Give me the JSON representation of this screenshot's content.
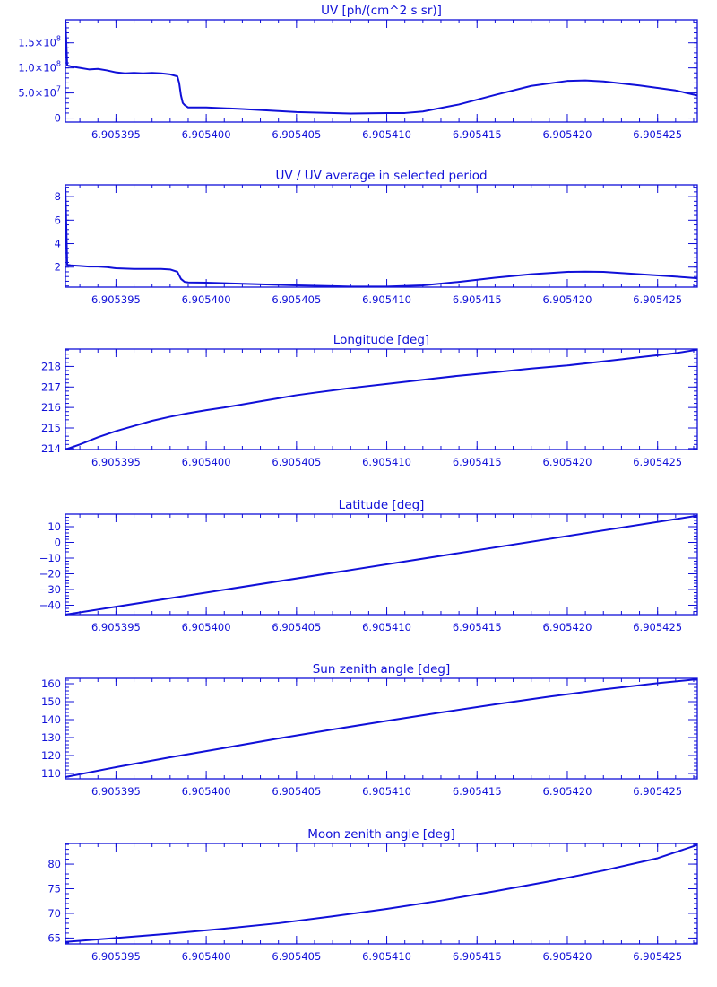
{
  "chart_data": [
    {
      "type": "line",
      "title": "UV [ph/(cm^2 s sr)]",
      "xlim": [
        6.9053922,
        6.9054272
      ],
      "ylim": [
        -8000000,
        196000000
      ],
      "xticks": [
        6.905395,
        6.9054,
        6.905405,
        6.90541,
        6.905415,
        6.90542,
        6.905425
      ],
      "xtick_labels": [
        "6.905395",
        "6.905400",
        "6.905405",
        "6.905410",
        "6.905415",
        "6.905420",
        "6.905425"
      ],
      "yticks": [
        0,
        50000000,
        100000000,
        150000000
      ],
      "ytick_labels": [
        {
          "base": "0",
          "exp": ""
        },
        {
          "base": "5.0×10",
          "exp": "7"
        },
        {
          "base": "1.0×10",
          "exp": "8"
        },
        {
          "base": "1.5×10",
          "exp": "8"
        }
      ],
      "series": [
        {
          "x": [
            6.9053922,
            6.9053923,
            6.9053925,
            6.905393,
            6.9053935,
            6.905394,
            6.9053945,
            6.905395,
            6.9053955,
            6.905396,
            6.9053965,
            6.905397,
            6.9053975,
            6.905398,
            6.9053984,
            6.9053985,
            6.9053986,
            6.9053987,
            6.9053988,
            6.905399,
            6.9053995,
            6.9054,
            6.905402,
            6.905405,
            6.905408,
            6.90541,
            6.905411,
            6.905412,
            6.905414,
            6.905416,
            6.905418,
            6.90542,
            6.905421,
            6.905422,
            6.905424,
            6.905426,
            6.9054272
          ],
          "y": [
            196000000,
            105000000,
            103000000,
            100000000,
            97000000,
            98000000,
            95000000,
            91000000,
            89000000,
            90000000,
            89000000,
            90000000,
            89000000,
            87000000,
            83000000,
            70000000,
            45000000,
            30000000,
            26000000,
            21000000,
            21000000,
            21000000,
            18000000,
            12000000,
            9000000,
            10000000,
            10000000,
            13000000,
            27000000,
            46000000,
            64000000,
            74000000,
            75000000,
            73000000,
            65000000,
            55000000,
            45000000
          ]
        }
      ]
    },
    {
      "type": "line",
      "title": "UV / UV average in selected period",
      "xlim": [
        6.9053922,
        6.9054272
      ],
      "ylim": [
        0.3,
        9.0
      ],
      "xticks": [
        6.905395,
        6.9054,
        6.905405,
        6.90541,
        6.905415,
        6.90542,
        6.905425
      ],
      "xtick_labels": [
        "6.905395",
        "6.905400",
        "6.905405",
        "6.905410",
        "6.905415",
        "6.905420",
        "6.905425"
      ],
      "yticks": [
        2,
        4,
        6,
        8
      ],
      "ytick_labels": [
        "2",
        "4",
        "6",
        "8"
      ],
      "series": [
        {
          "x": [
            6.9053922,
            6.9053923,
            6.9053925,
            6.905393,
            6.9053935,
            6.905394,
            6.9053945,
            6.905395,
            6.905396,
            6.905397,
            6.9053975,
            6.905398,
            6.9053984,
            6.9053986,
            6.9053988,
            6.905399,
            6.9054,
            6.905405,
            6.905408,
            6.90541,
            6.905412,
            6.905414,
            6.905416,
            6.905418,
            6.90542,
            6.905421,
            6.905422,
            6.905424,
            6.905426,
            6.9054272
          ],
          "y": [
            8.8,
            2.2,
            2.15,
            2.1,
            2.05,
            2.05,
            2.0,
            1.9,
            1.85,
            1.85,
            1.85,
            1.8,
            1.6,
            1.0,
            0.75,
            0.7,
            0.68,
            0.45,
            0.35,
            0.35,
            0.45,
            0.75,
            1.1,
            1.4,
            1.6,
            1.62,
            1.6,
            1.4,
            1.2,
            1.05
          ]
        }
      ]
    },
    {
      "type": "line",
      "title": "Longitude [deg]",
      "xlim": [
        6.9053922,
        6.9054272
      ],
      "ylim": [
        213.95,
        218.85
      ],
      "xticks": [
        6.905395,
        6.9054,
        6.905405,
        6.90541,
        6.905415,
        6.90542,
        6.905425
      ],
      "xtick_labels": [
        "6.905395",
        "6.905400",
        "6.905405",
        "6.905410",
        "6.905415",
        "6.905420",
        "6.905425"
      ],
      "yticks": [
        214,
        215,
        216,
        217,
        218
      ],
      "ytick_labels": [
        "214",
        "215",
        "216",
        "217",
        "218"
      ],
      "series": [
        {
          "x": [
            6.9053922,
            6.905393,
            6.905394,
            6.905395,
            6.905396,
            6.905397,
            6.905398,
            6.905399,
            6.9054,
            6.905401,
            6.905402,
            6.905403,
            6.905404,
            6.905405,
            6.905406,
            6.905408,
            6.90541,
            6.905412,
            6.905414,
            6.905416,
            6.905418,
            6.90542,
            6.905422,
            6.905424,
            6.905426,
            6.9054272
          ],
          "y": [
            213.95,
            214.2,
            214.55,
            214.85,
            215.1,
            215.35,
            215.55,
            215.72,
            215.87,
            216.0,
            216.15,
            216.3,
            216.45,
            216.6,
            216.72,
            216.95,
            217.15,
            217.35,
            217.55,
            217.72,
            217.9,
            218.05,
            218.25,
            218.45,
            218.65,
            218.82
          ]
        }
      ]
    },
    {
      "type": "line",
      "title": "Latitude [deg]",
      "xlim": [
        6.9053922,
        6.9054272
      ],
      "ylim": [
        -46,
        18
      ],
      "xticks": [
        6.905395,
        6.9054,
        6.905405,
        6.90541,
        6.905415,
        6.90542,
        6.905425
      ],
      "xtick_labels": [
        "6.905395",
        "6.905400",
        "6.905405",
        "6.905410",
        "6.905415",
        "6.905420",
        "6.905425"
      ],
      "yticks": [
        -40,
        -30,
        -20,
        -10,
        0,
        10
      ],
      "ytick_labels": [
        "−40",
        "−30",
        "−20",
        "−10",
        "0",
        "10"
      ],
      "series": [
        {
          "x": [
            6.9053922,
            6.9054272
          ],
          "y": [
            -46,
            17
          ]
        }
      ]
    },
    {
      "type": "line",
      "title": "Sun zenith angle [deg]",
      "xlim": [
        6.9053922,
        6.9054272
      ],
      "ylim": [
        107,
        163
      ],
      "xticks": [
        6.905395,
        6.9054,
        6.905405,
        6.90541,
        6.905415,
        6.90542,
        6.905425
      ],
      "xtick_labels": [
        "6.905395",
        "6.905400",
        "6.905405",
        "6.905410",
        "6.905415",
        "6.905420",
        "6.905425"
      ],
      "yticks": [
        110,
        120,
        130,
        140,
        150,
        160
      ],
      "ytick_labels": [
        "110",
        "120",
        "130",
        "140",
        "150",
        "160"
      ],
      "series": [
        {
          "x": [
            6.9053922,
            6.905395,
            6.905398,
            6.905401,
            6.905404,
            6.905407,
            6.90541,
            6.905413,
            6.905416,
            6.905419,
            6.905422,
            6.905425,
            6.9054272
          ],
          "y": [
            108,
            113.5,
            119,
            124.2,
            129.5,
            134.5,
            139.3,
            144,
            148.5,
            152.8,
            156.8,
            160.3,
            162.5
          ]
        }
      ]
    },
    {
      "type": "line",
      "title": "Moon zenith angle [deg]",
      "xlim": [
        6.9053922,
        6.9054272
      ],
      "ylim": [
        63.8,
        84.2
      ],
      "xticks": [
        6.905395,
        6.9054,
        6.905405,
        6.90541,
        6.905415,
        6.90542,
        6.905425
      ],
      "xtick_labels": [
        "6.905395",
        "6.905400",
        "6.905405",
        "6.905410",
        "6.905415",
        "6.905420",
        "6.905425"
      ],
      "yticks": [
        65,
        70,
        75,
        80
      ],
      "ytick_labels": [
        "65",
        "70",
        "75",
        "80"
      ],
      "series": [
        {
          "x": [
            6.9053922,
            6.905395,
            6.905398,
            6.905401,
            6.905404,
            6.905407,
            6.90541,
            6.905413,
            6.905416,
            6.905419,
            6.905422,
            6.905425,
            6.9054272
          ],
          "y": [
            64.2,
            65.0,
            65.9,
            66.9,
            68.0,
            69.4,
            70.9,
            72.6,
            74.5,
            76.5,
            78.7,
            81.2,
            83.9
          ]
        }
      ]
    }
  ]
}
